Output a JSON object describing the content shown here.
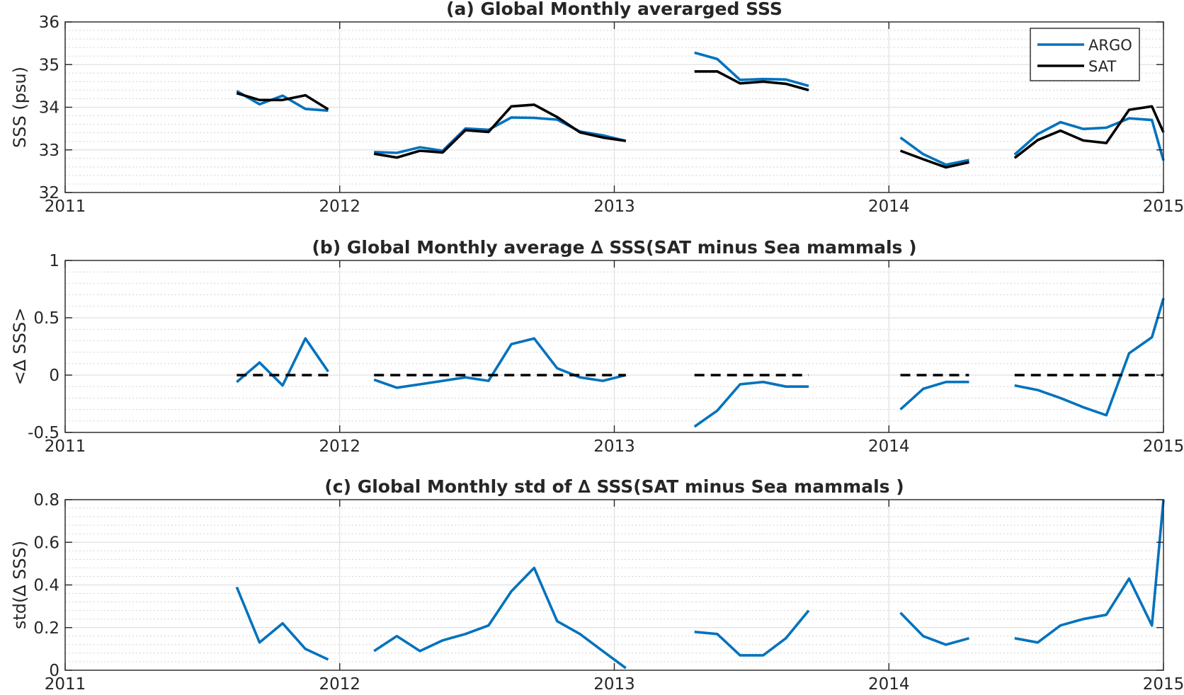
{
  "chart_data": [
    {
      "type": "line",
      "title": "(a) Global Monthly averarged SSS",
      "ylabel": "SSS (psu)",
      "xlim": [
        2011,
        2015
      ],
      "ylim": [
        32,
        36
      ],
      "xticks": [
        2011,
        2012,
        2013,
        2014,
        2015
      ],
      "xticklabels": [
        "2011",
        "2012",
        "2013",
        "2014",
        "2015"
      ],
      "yticks": [
        32,
        33,
        34,
        35,
        36
      ],
      "yticklabels": [
        "32",
        "33",
        "34",
        "35",
        "36"
      ],
      "grid": true,
      "legend": "top-right",
      "series": [
        {
          "name": "ARGO",
          "color": "#0072BD",
          "segments": [
            [
              [
                2011.625,
                34.38
              ],
              [
                2011.708,
                34.07
              ],
              [
                2011.792,
                34.27
              ],
              [
                2011.875,
                33.96
              ],
              [
                2011.958,
                33.92
              ]
            ],
            [
              [
                2012.125,
                32.95
              ],
              [
                2012.208,
                32.93
              ],
              [
                2012.292,
                33.06
              ],
              [
                2012.375,
                32.98
              ],
              [
                2012.458,
                33.5
              ],
              [
                2012.542,
                33.47
              ],
              [
                2012.625,
                33.76
              ],
              [
                2012.708,
                33.75
              ],
              [
                2012.792,
                33.71
              ],
              [
                2012.875,
                33.43
              ],
              [
                2012.958,
                33.34
              ],
              [
                2013.042,
                33.21
              ]
            ],
            [
              [
                2013.292,
                35.28
              ],
              [
                2013.375,
                35.13
              ],
              [
                2013.458,
                34.64
              ],
              [
                2013.542,
                34.66
              ],
              [
                2013.625,
                34.65
              ],
              [
                2013.708,
                34.5
              ]
            ],
            [
              [
                2014.042,
                33.29
              ],
              [
                2014.125,
                32.9
              ],
              [
                2014.208,
                32.65
              ],
              [
                2014.292,
                32.76
              ]
            ],
            [
              [
                2014.458,
                32.89
              ],
              [
                2014.542,
                33.37
              ],
              [
                2014.625,
                33.65
              ],
              [
                2014.708,
                33.49
              ],
              [
                2014.792,
                33.52
              ],
              [
                2014.875,
                33.74
              ],
              [
                2014.958,
                33.7
              ],
              [
                2015.0,
                32.75
              ]
            ]
          ]
        },
        {
          "name": "SAT",
          "color": "#000000",
          "segments": [
            [
              [
                2011.625,
                34.33
              ],
              [
                2011.708,
                34.17
              ],
              [
                2011.792,
                34.17
              ],
              [
                2011.875,
                34.28
              ],
              [
                2011.958,
                33.95
              ]
            ],
            [
              [
                2012.125,
                32.91
              ],
              [
                2012.208,
                32.82
              ],
              [
                2012.292,
                32.98
              ],
              [
                2012.375,
                32.94
              ],
              [
                2012.458,
                33.46
              ],
              [
                2012.542,
                33.42
              ],
              [
                2012.625,
                34.02
              ],
              [
                2012.708,
                34.06
              ],
              [
                2012.792,
                33.77
              ],
              [
                2012.875,
                33.41
              ],
              [
                2012.958,
                33.29
              ],
              [
                2013.042,
                33.21
              ]
            ],
            [
              [
                2013.292,
                34.84
              ],
              [
                2013.375,
                34.84
              ],
              [
                2013.458,
                34.56
              ],
              [
                2013.542,
                34.6
              ],
              [
                2013.625,
                34.55
              ],
              [
                2013.708,
                34.4
              ]
            ],
            [
              [
                2014.042,
                32.98
              ],
              [
                2014.125,
                32.78
              ],
              [
                2014.208,
                32.59
              ],
              [
                2014.292,
                32.71
              ]
            ],
            [
              [
                2014.458,
                32.81
              ],
              [
                2014.542,
                33.23
              ],
              [
                2014.625,
                33.45
              ],
              [
                2014.708,
                33.22
              ],
              [
                2014.792,
                33.16
              ],
              [
                2014.875,
                33.94
              ],
              [
                2014.958,
                34.02
              ],
              [
                2015.0,
                33.41
              ]
            ]
          ]
        }
      ]
    },
    {
      "type": "line",
      "title": "(b) Global Monthly average ∆ SSS(SAT minus Sea mammals )",
      "ylabel": "<∆ SSS>",
      "xlim": [
        2011,
        2015
      ],
      "ylim": [
        -0.5,
        1
      ],
      "xticks": [
        2011,
        2012,
        2013,
        2014,
        2015
      ],
      "xticklabels": [
        "2011",
        "2012",
        "2013",
        "2014",
        "2015"
      ],
      "yticks": [
        -0.5,
        0,
        0.5,
        1
      ],
      "yticklabels": [
        "-0.5",
        "0",
        "0.5",
        "1"
      ],
      "grid": true,
      "series": [
        {
          "color": "#0072BD",
          "segments": [
            [
              [
                2011.625,
                -0.06
              ],
              [
                2011.708,
                0.11
              ],
              [
                2011.792,
                -0.09
              ],
              [
                2011.875,
                0.32
              ],
              [
                2011.958,
                0.03
              ]
            ],
            [
              [
                2012.125,
                -0.04
              ],
              [
                2012.208,
                -0.11
              ],
              [
                2012.292,
                -0.08
              ],
              [
                2012.375,
                -0.05
              ],
              [
                2012.458,
                -0.02
              ],
              [
                2012.542,
                -0.05
              ],
              [
                2012.625,
                0.27
              ],
              [
                2012.708,
                0.32
              ],
              [
                2012.792,
                0.06
              ],
              [
                2012.875,
                -0.02
              ],
              [
                2012.958,
                -0.05
              ],
              [
                2013.042,
                0.0
              ]
            ],
            [
              [
                2013.292,
                -0.45
              ],
              [
                2013.375,
                -0.31
              ],
              [
                2013.458,
                -0.08
              ],
              [
                2013.542,
                -0.06
              ],
              [
                2013.625,
                -0.1
              ],
              [
                2013.708,
                -0.1
              ]
            ],
            [
              [
                2014.042,
                -0.3
              ],
              [
                2014.125,
                -0.12
              ],
              [
                2014.208,
                -0.06
              ],
              [
                2014.292,
                -0.06
              ]
            ],
            [
              [
                2014.458,
                -0.09
              ],
              [
                2014.542,
                -0.13
              ],
              [
                2014.625,
                -0.2
              ],
              [
                2014.708,
                -0.28
              ],
              [
                2014.792,
                -0.35
              ],
              [
                2014.875,
                0.19
              ],
              [
                2014.958,
                0.33
              ],
              [
                2015.0,
                0.67
              ]
            ]
          ]
        },
        {
          "color": "#000000",
          "dashed": true,
          "segments": [
            [
              [
                2011.625,
                0
              ],
              [
                2011.958,
                0
              ]
            ],
            [
              [
                2012.125,
                0
              ],
              [
                2013.042,
                0
              ]
            ],
            [
              [
                2013.292,
                0
              ],
              [
                2013.708,
                0
              ]
            ],
            [
              [
                2014.042,
                0
              ],
              [
                2014.292,
                0
              ]
            ],
            [
              [
                2014.458,
                0
              ],
              [
                2015.0,
                0
              ]
            ]
          ]
        }
      ]
    },
    {
      "type": "line",
      "title": "(c) Global Monthly std of ∆ SSS(SAT minus Sea mammals )",
      "ylabel": "std(∆ SSS)",
      "xlim": [
        2011,
        2015
      ],
      "ylim": [
        0,
        0.8
      ],
      "xticks": [
        2011,
        2012,
        2013,
        2014,
        2015
      ],
      "xticklabels": [
        "2011",
        "2012",
        "2013",
        "2014",
        "2015"
      ],
      "yticks": [
        0,
        0.2,
        0.4,
        0.6,
        0.8
      ],
      "yticklabels": [
        "0",
        "0.2",
        "0.4",
        "0.6",
        "0.8"
      ],
      "grid": true,
      "series": [
        {
          "color": "#0072BD",
          "segments": [
            [
              [
                2011.625,
                0.39
              ],
              [
                2011.708,
                0.13
              ],
              [
                2011.792,
                0.22
              ],
              [
                2011.875,
                0.1
              ],
              [
                2011.958,
                0.05
              ]
            ],
            [
              [
                2012.125,
                0.09
              ],
              [
                2012.208,
                0.16
              ],
              [
                2012.292,
                0.09
              ],
              [
                2012.375,
                0.14
              ],
              [
                2012.458,
                0.17
              ],
              [
                2012.542,
                0.21
              ],
              [
                2012.625,
                0.37
              ],
              [
                2012.708,
                0.48
              ],
              [
                2012.792,
                0.23
              ],
              [
                2012.875,
                0.17
              ],
              [
                2012.958,
                0.09
              ],
              [
                2013.042,
                0.01
              ]
            ],
            [
              [
                2013.292,
                0.18
              ],
              [
                2013.375,
                0.17
              ],
              [
                2013.458,
                0.07
              ],
              [
                2013.542,
                0.07
              ],
              [
                2013.625,
                0.15
              ],
              [
                2013.708,
                0.28
              ]
            ],
            [
              [
                2014.042,
                0.27
              ],
              [
                2014.125,
                0.16
              ],
              [
                2014.208,
                0.12
              ],
              [
                2014.292,
                0.15
              ]
            ],
            [
              [
                2014.458,
                0.15
              ],
              [
                2014.542,
                0.13
              ],
              [
                2014.625,
                0.21
              ],
              [
                2014.708,
                0.24
              ],
              [
                2014.792,
                0.26
              ],
              [
                2014.875,
                0.43
              ],
              [
                2014.958,
                0.21
              ],
              [
                2015.0,
                0.8
              ]
            ]
          ]
        }
      ]
    }
  ]
}
